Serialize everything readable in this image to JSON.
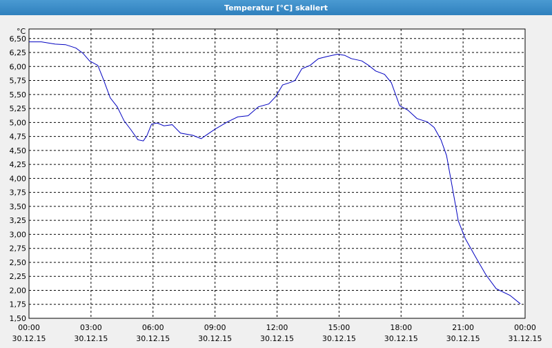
{
  "chart_data": {
    "type": "line",
    "title": "Temperatur [°C] skaliert",
    "y_unit": "°C",
    "xlim": [
      0,
      24
    ],
    "ylim": [
      1.5,
      6.67
    ],
    "xticks": [
      {
        "value": 0,
        "label": "00:00"
      },
      {
        "value": 3,
        "label": "03:00"
      },
      {
        "value": 6,
        "label": "06:00"
      },
      {
        "value": 9,
        "label": "09:00"
      },
      {
        "value": 12,
        "label": "12:00"
      },
      {
        "value": 15,
        "label": "15:00"
      },
      {
        "value": 18,
        "label": "18:00"
      },
      {
        "value": 21,
        "label": "21:00"
      },
      {
        "value": 24,
        "label": "00:00"
      }
    ],
    "xtick_dates": [
      "30.12.15",
      "30.12.15",
      "30.12.15",
      "30.12.15",
      "30.12.15",
      "30.12.15",
      "30.12.15",
      "30.12.15",
      "31.12.15"
    ],
    "yticks": [
      {
        "value": 1.5,
        "label": "1,50"
      },
      {
        "value": 1.75,
        "label": "1,75"
      },
      {
        "value": 2,
        "label": "2,00"
      },
      {
        "value": 2.25,
        "label": "2,25"
      },
      {
        "value": 2.5,
        "label": "2,50"
      },
      {
        "value": 2.75,
        "label": "2,75"
      },
      {
        "value": 3,
        "label": "3,00"
      },
      {
        "value": 3.25,
        "label": "3,25"
      },
      {
        "value": 3.5,
        "label": "3,50"
      },
      {
        "value": 3.75,
        "label": "3,75"
      },
      {
        "value": 4,
        "label": "4,00"
      },
      {
        "value": 4.25,
        "label": "4,25"
      },
      {
        "value": 4.5,
        "label": "4,50"
      },
      {
        "value": 4.75,
        "label": "4,75"
      },
      {
        "value": 5,
        "label": "5,00"
      },
      {
        "value": 5.25,
        "label": "5,25"
      },
      {
        "value": 5.5,
        "label": "5,50"
      },
      {
        "value": 5.75,
        "label": "5,75"
      },
      {
        "value": 6,
        "label": "6,00"
      },
      {
        "value": 6.25,
        "label": "6,25"
      },
      {
        "value": 6.5,
        "label": "6,50"
      }
    ],
    "grid": true,
    "x": [
      0,
      0.6,
      1.27,
      1.77,
      2.27,
      2.6,
      2.93,
      3.33,
      3.6,
      3.93,
      4.27,
      4.6,
      4.93,
      5.27,
      5.53,
      5.7,
      5.93,
      6.2,
      6.53,
      6.93,
      7.33,
      7.93,
      8.33,
      8.6,
      9.0,
      9.6,
      10.1,
      10.6,
      11.1,
      11.6,
      11.93,
      12.27,
      12.6,
      12.87,
      13.2,
      13.6,
      14.0,
      14.43,
      14.93,
      15.27,
      15.6,
      16.1,
      16.43,
      16.77,
      17.2,
      17.53,
      17.93,
      18.33,
      18.77,
      19.27,
      19.6,
      19.93,
      20.2,
      20.47,
      20.77,
      21.1,
      21.6,
      22.1,
      22.6,
      23.27,
      23.77
    ],
    "series": [
      {
        "name": "Temperatur",
        "color": "#0000c0",
        "values": [
          6.44,
          6.44,
          6.4,
          6.39,
          6.33,
          6.24,
          6.1,
          6.02,
          5.77,
          5.44,
          5.28,
          5.03,
          4.87,
          4.69,
          4.67,
          4.76,
          4.97,
          4.99,
          4.94,
          4.96,
          4.81,
          4.77,
          4.71,
          4.78,
          4.88,
          5.01,
          5.1,
          5.12,
          5.28,
          5.33,
          5.46,
          5.67,
          5.71,
          5.75,
          5.96,
          6.02,
          6.14,
          6.18,
          6.22,
          6.2,
          6.14,
          6.1,
          6.02,
          5.92,
          5.86,
          5.71,
          5.3,
          5.22,
          5.07,
          5.01,
          4.91,
          4.69,
          4.41,
          3.86,
          3.24,
          2.93,
          2.6,
          2.28,
          2.03,
          1.91,
          1.76
        ]
      }
    ]
  }
}
